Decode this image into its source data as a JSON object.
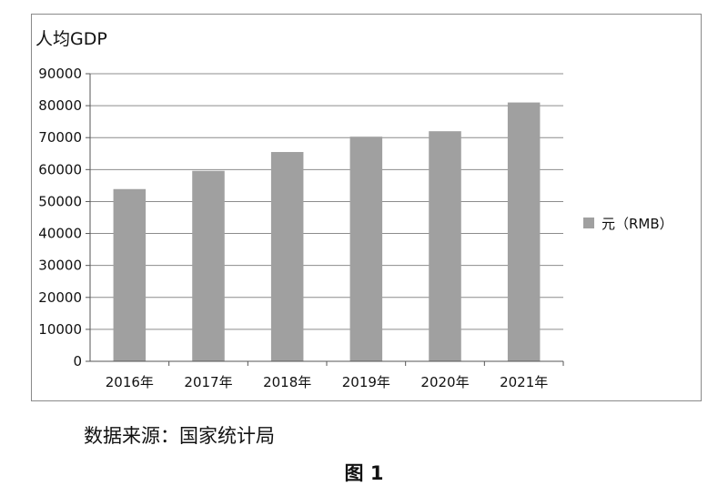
{
  "chart_data": {
    "type": "bar",
    "title": "人均GDP",
    "categories": [
      "2016年",
      "2017年",
      "2018年",
      "2019年",
      "2020年",
      "2021年"
    ],
    "series": [
      {
        "name": "元（RMB）",
        "values": [
          53900,
          59600,
          65500,
          70300,
          72000,
          81000
        ]
      }
    ],
    "ylim": [
      0,
      90000
    ],
    "yticks": [
      0,
      10000,
      20000,
      30000,
      40000,
      50000,
      60000,
      70000,
      80000,
      90000
    ],
    "xlabel": "",
    "ylabel": "",
    "grid": true,
    "legend": "right",
    "bar_color": "#a0a0a0",
    "grid_color": "#8c8c8c"
  },
  "source_note": "数据来源：国家统计局",
  "figure_caption": "图 1"
}
